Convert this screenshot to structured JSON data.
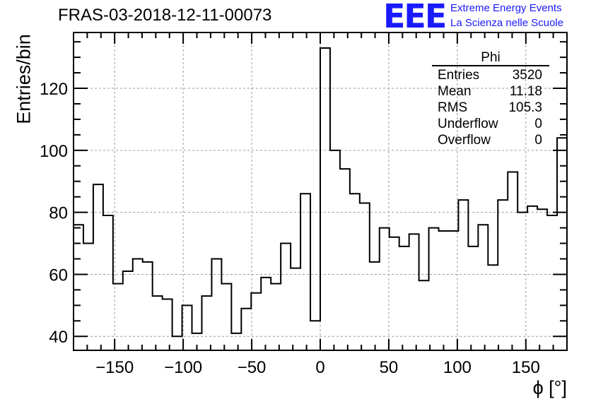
{
  "title": "FRAS-03-2018-12-11-00073",
  "logo": {
    "text": "EEE",
    "line1": "Extreme Energy Events",
    "line2": "La Scienza nelle Scuole",
    "color": "#1a1aff"
  },
  "stats": {
    "name": "Phi",
    "rows": [
      {
        "label": "Entries",
        "value": "3520"
      },
      {
        "label": "Mean",
        "value": "11.18"
      },
      {
        "label": "RMS",
        "value": "105.3"
      },
      {
        "label": "Underflow",
        "value": "0"
      },
      {
        "label": "Overflow",
        "value": "0"
      }
    ]
  },
  "chart_data": {
    "type": "bar",
    "histogram": true,
    "title": "FRAS-03-2018-12-11-00073",
    "xlabel": "ϕ [°]",
    "ylabel": "Entries/bin",
    "xlim": [
      -180,
      180
    ],
    "ylim": [
      35.5,
      138
    ],
    "bin_width": 7.2,
    "x_ticks": [
      -150,
      -100,
      -50,
      0,
      50,
      100,
      150
    ],
    "x_tick_labels": [
      "−150",
      "−100",
      "−50",
      "0",
      "50",
      "100",
      "150"
    ],
    "y_ticks": [
      40,
      60,
      80,
      100,
      120
    ],
    "y_tick_labels": [
      "40",
      "60",
      "80",
      "100",
      "120"
    ],
    "values": [
      76,
      70,
      89,
      79,
      57,
      61,
      65,
      64,
      53,
      52,
      40,
      50,
      41,
      53,
      65,
      57,
      41,
      49,
      54,
      59,
      57,
      70,
      62,
      86,
      45,
      133,
      100,
      94,
      86,
      83,
      64,
      75,
      72,
      69,
      73,
      58,
      75,
      74,
      74,
      84,
      69,
      76,
      63,
      84,
      93,
      80,
      82,
      81,
      79,
      104
    ],
    "grid": true,
    "line_color": "#000000"
  }
}
